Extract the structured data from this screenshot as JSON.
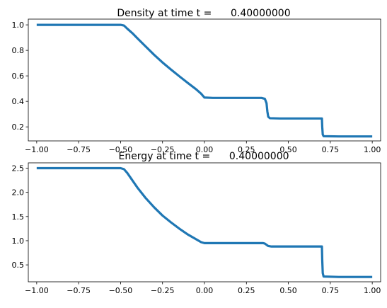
{
  "chart_data": [
    {
      "type": "line",
      "title": "Density at time t =      0.40000000",
      "xlabel": "",
      "ylabel": "",
      "xlim": [
        -1.05,
        1.05
      ],
      "ylim": [
        0.09,
        1.045
      ],
      "xticks": [
        -1.0,
        -0.75,
        -0.5,
        -0.25,
        0.0,
        0.25,
        0.5,
        0.75,
        1.0
      ],
      "xtick_labels": [
        "−1.00",
        "−0.75",
        "−0.50",
        "−0.25",
        "0.00",
        "0.25",
        "0.50",
        "0.75",
        "1.00"
      ],
      "yticks": [
        0.2,
        0.4,
        0.6,
        0.8,
        1.0
      ],
      "ytick_labels": [
        "0.2",
        "0.4",
        "0.6",
        "0.8",
        "1.0"
      ],
      "grid": false,
      "series_color": "#1f77b4",
      "series": [
        {
          "x": [
            -1.0,
            -0.7,
            -0.5,
            -0.48,
            -0.46,
            -0.43,
            -0.4,
            -0.35,
            -0.3,
            -0.25,
            -0.2,
            -0.15,
            -0.1,
            -0.05,
            -0.02,
            0.0,
            0.05,
            0.1,
            0.2,
            0.3,
            0.34,
            0.36,
            0.37,
            0.375,
            0.38,
            0.39,
            0.45,
            0.55,
            0.65,
            0.7,
            0.702,
            0.705,
            0.71,
            0.8,
            0.9,
            1.0
          ],
          "y": [
            1.0,
            1.0,
            1.0,
            0.995,
            0.97,
            0.935,
            0.895,
            0.83,
            0.765,
            0.705,
            0.65,
            0.597,
            0.545,
            0.495,
            0.46,
            0.43,
            0.427,
            0.427,
            0.427,
            0.427,
            0.427,
            0.42,
            0.385,
            0.32,
            0.28,
            0.268,
            0.266,
            0.266,
            0.266,
            0.266,
            0.2,
            0.14,
            0.127,
            0.125,
            0.125,
            0.125
          ]
        }
      ]
    },
    {
      "type": "line",
      "title": "Energy at time t =      0.40000000",
      "xlabel": "",
      "ylabel": "",
      "xlim": [
        -1.05,
        1.05
      ],
      "ylim": [
        0.15,
        2.61
      ],
      "xticks": [
        -1.0,
        -0.75,
        -0.5,
        -0.25,
        0.0,
        0.25,
        0.5,
        0.75,
        1.0
      ],
      "xtick_labels": [
        "−1.00",
        "−0.75",
        "−0.50",
        "−0.25",
        "0.00",
        "0.25",
        "0.50",
        "0.75",
        "1.00"
      ],
      "yticks": [
        0.5,
        1.0,
        1.5,
        2.0,
        2.5
      ],
      "ytick_labels": [
        "0.5",
        "1.0",
        "1.5",
        "2.0",
        "2.5"
      ],
      "grid": false,
      "series_color": "#1f77b4",
      "series": [
        {
          "x": [
            -1.0,
            -0.7,
            -0.5,
            -0.48,
            -0.46,
            -0.43,
            -0.4,
            -0.35,
            -0.3,
            -0.25,
            -0.2,
            -0.15,
            -0.1,
            -0.05,
            -0.02,
            0.0,
            0.1,
            0.2,
            0.3,
            0.35,
            0.36,
            0.37,
            0.38,
            0.4,
            0.5,
            0.6,
            0.7,
            0.702,
            0.705,
            0.71,
            0.8,
            0.9,
            1.0
          ],
          "y": [
            2.5,
            2.5,
            2.5,
            2.48,
            2.4,
            2.25,
            2.1,
            1.88,
            1.69,
            1.52,
            1.38,
            1.25,
            1.13,
            1.03,
            0.97,
            0.95,
            0.95,
            0.95,
            0.95,
            0.95,
            0.94,
            0.915,
            0.89,
            0.88,
            0.88,
            0.88,
            0.88,
            0.6,
            0.33,
            0.26,
            0.25,
            0.25,
            0.25
          ]
        }
      ]
    }
  ]
}
